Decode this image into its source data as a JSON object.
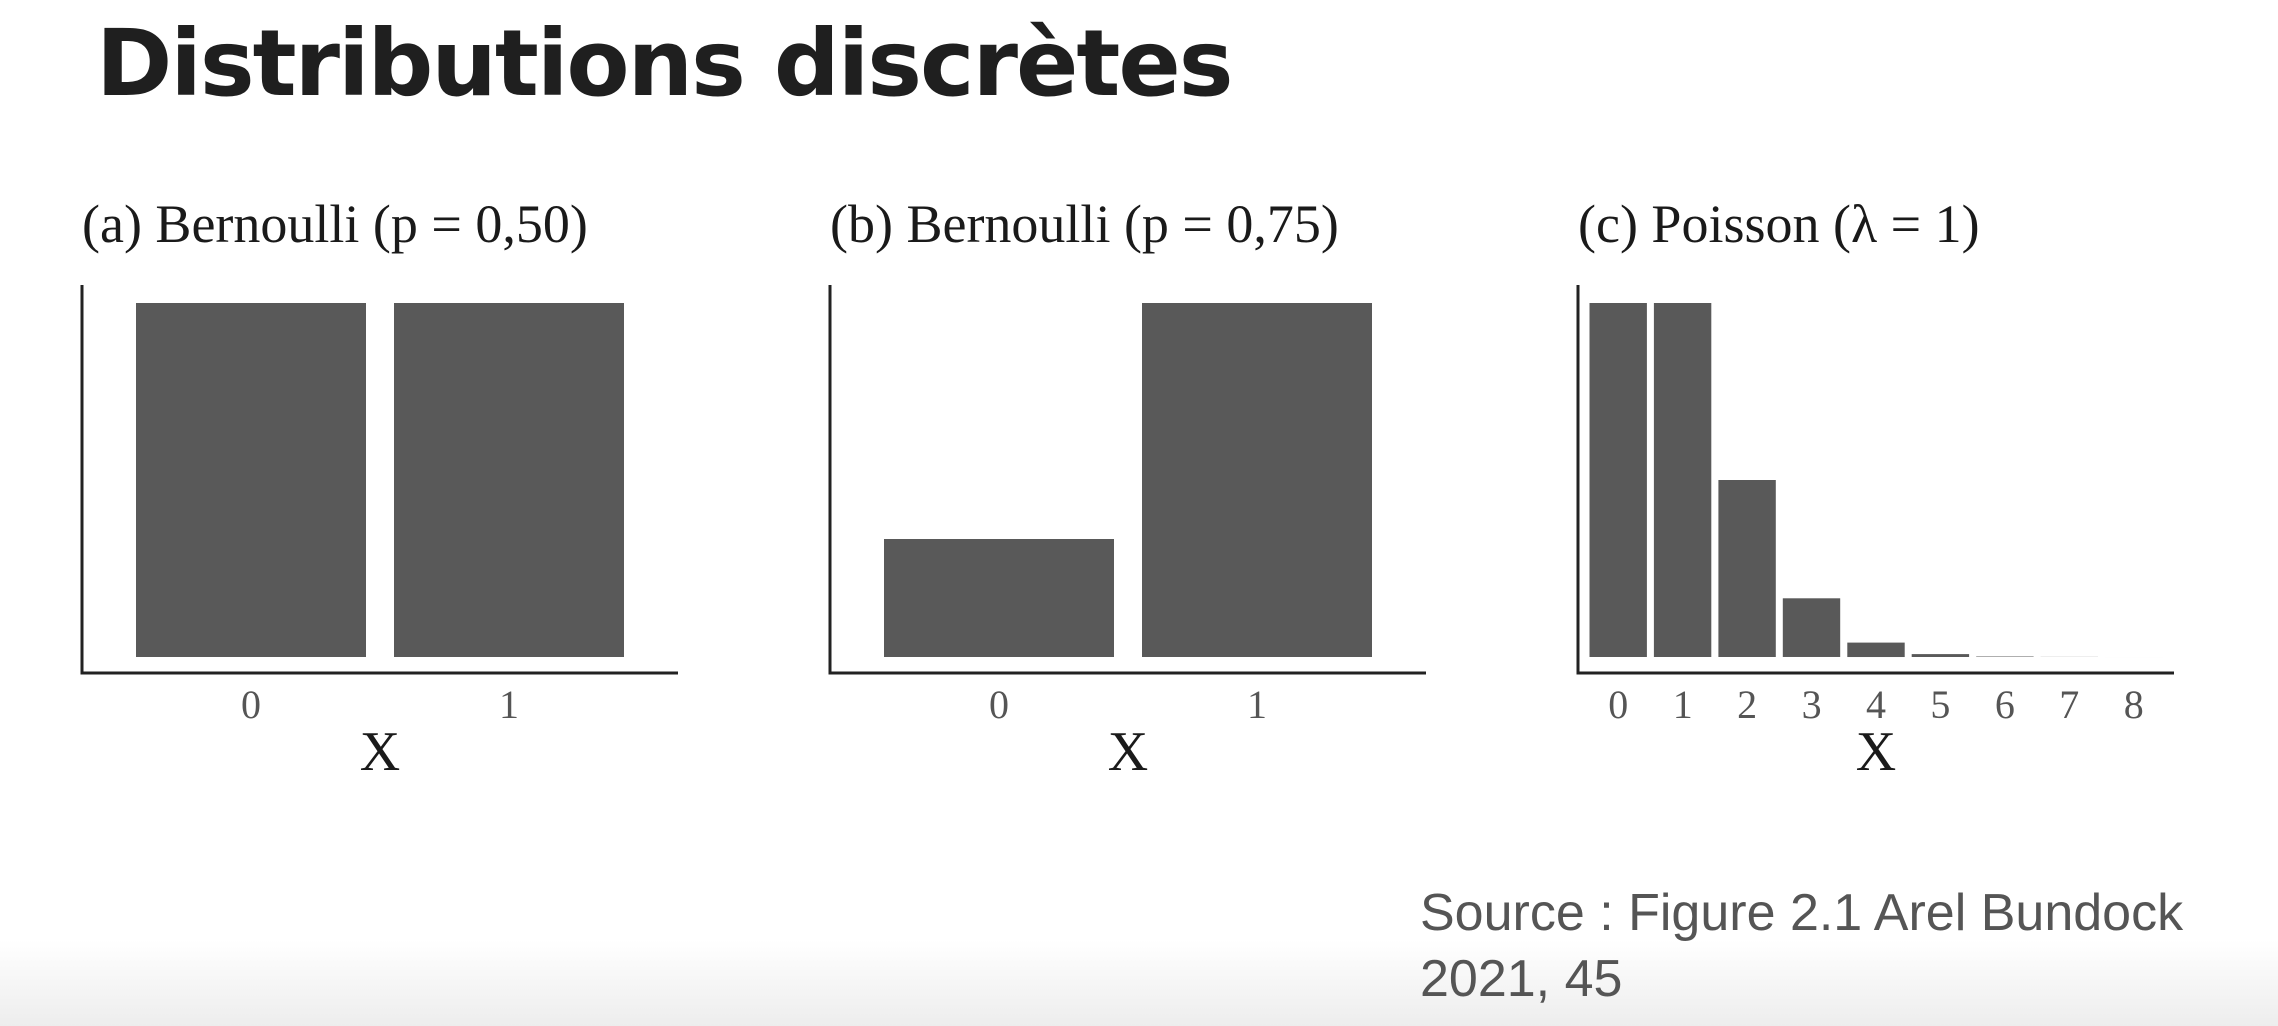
{
  "slide": {
    "title": "Distributions discrètes",
    "source": "Source : Figure 2.1 Arel Bundock 2021, 45"
  },
  "chart_data": [
    {
      "type": "bar",
      "title": "(a) Bernoulli (p = 0,50)",
      "xlabel": "X",
      "ylabel": "",
      "categories": [
        "0",
        "1"
      ],
      "values": [
        0.5,
        0.5
      ],
      "ylim": [
        0,
        0.5
      ],
      "color": "#595959"
    },
    {
      "type": "bar",
      "title": "(b) Bernoulli (p = 0,75)",
      "xlabel": "X",
      "ylabel": "",
      "categories": [
        "0",
        "1"
      ],
      "values": [
        0.25,
        0.75
      ],
      "ylim": [
        0,
        0.75
      ],
      "color": "#595959"
    },
    {
      "type": "bar",
      "title": "(c) Poisson (λ = 1)",
      "xlabel": "X",
      "ylabel": "",
      "categories": [
        "0",
        "1",
        "2",
        "3",
        "4",
        "5",
        "6",
        "7",
        "8"
      ],
      "values": [
        0.368,
        0.368,
        0.184,
        0.061,
        0.015,
        0.003,
        0.0005,
        0.0001,
        1e-05
      ],
      "ylim": [
        0,
        0.368
      ],
      "color": "#595959"
    }
  ]
}
